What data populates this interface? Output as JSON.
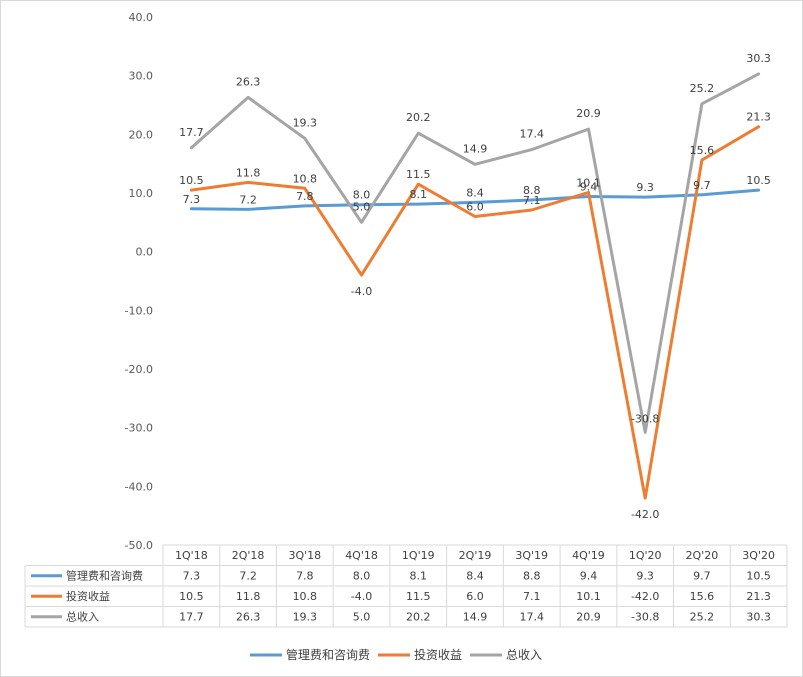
{
  "chart_data": {
    "type": "line",
    "categories": [
      "1Q'18",
      "2Q'18",
      "3Q'18",
      "4Q'18",
      "1Q'19",
      "2Q'19",
      "3Q'19",
      "4Q'19",
      "1Q'20",
      "2Q'20",
      "3Q'20"
    ],
    "series": [
      {
        "name": "管理费和咨询费",
        "color": "#5b9bd5",
        "values": [
          7.3,
          7.2,
          7.8,
          8.0,
          8.1,
          8.4,
          8.8,
          9.4,
          9.3,
          9.7,
          10.5
        ]
      },
      {
        "name": "投资收益",
        "color": "#ed7d31",
        "values": [
          10.5,
          11.8,
          10.8,
          -4.0,
          11.5,
          6.0,
          7.1,
          10.1,
          -42.0,
          15.6,
          21.3
        ]
      },
      {
        "name": "总收入",
        "color": "#a5a5a5",
        "values": [
          17.7,
          26.3,
          19.3,
          5.0,
          20.2,
          14.9,
          17.4,
          20.9,
          -30.8,
          25.2,
          30.3
        ]
      }
    ],
    "ylim": [
      -50,
      40
    ],
    "yticks": [
      "-50.0",
      "-40.0",
      "-30.0",
      "-20.0",
      "-10.0",
      "0.0",
      "10.0",
      "20.0",
      "30.0",
      "40.0"
    ],
    "grid": false,
    "legend": "bottom",
    "data_table": true
  }
}
